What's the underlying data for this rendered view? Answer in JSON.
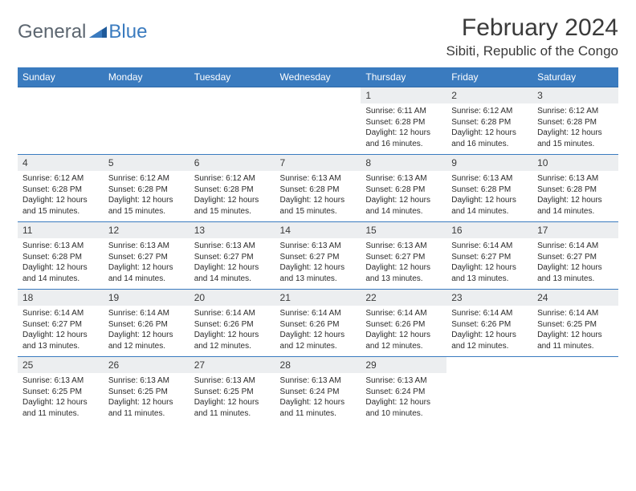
{
  "logo": {
    "general": "General",
    "blue": "Blue"
  },
  "title": "February 2024",
  "location": "Sibiti, Republic of the Congo",
  "colors": {
    "header_bg": "#3a7bbf",
    "header_text": "#ffffff",
    "daynum_bg": "#eceef0",
    "border": "#3a7bbf",
    "text": "#2b2b2b",
    "logo_gray": "#5c6670",
    "logo_blue": "#3a7bbf"
  },
  "days": [
    "Sunday",
    "Monday",
    "Tuesday",
    "Wednesday",
    "Thursday",
    "Friday",
    "Saturday"
  ],
  "weeks": [
    [
      null,
      null,
      null,
      null,
      {
        "n": "1",
        "sr": "6:11 AM",
        "ss": "6:28 PM",
        "dl": "12 hours and 16 minutes."
      },
      {
        "n": "2",
        "sr": "6:12 AM",
        "ss": "6:28 PM",
        "dl": "12 hours and 16 minutes."
      },
      {
        "n": "3",
        "sr": "6:12 AM",
        "ss": "6:28 PM",
        "dl": "12 hours and 15 minutes."
      }
    ],
    [
      {
        "n": "4",
        "sr": "6:12 AM",
        "ss": "6:28 PM",
        "dl": "12 hours and 15 minutes."
      },
      {
        "n": "5",
        "sr": "6:12 AM",
        "ss": "6:28 PM",
        "dl": "12 hours and 15 minutes."
      },
      {
        "n": "6",
        "sr": "6:12 AM",
        "ss": "6:28 PM",
        "dl": "12 hours and 15 minutes."
      },
      {
        "n": "7",
        "sr": "6:13 AM",
        "ss": "6:28 PM",
        "dl": "12 hours and 15 minutes."
      },
      {
        "n": "8",
        "sr": "6:13 AM",
        "ss": "6:28 PM",
        "dl": "12 hours and 14 minutes."
      },
      {
        "n": "9",
        "sr": "6:13 AM",
        "ss": "6:28 PM",
        "dl": "12 hours and 14 minutes."
      },
      {
        "n": "10",
        "sr": "6:13 AM",
        "ss": "6:28 PM",
        "dl": "12 hours and 14 minutes."
      }
    ],
    [
      {
        "n": "11",
        "sr": "6:13 AM",
        "ss": "6:28 PM",
        "dl": "12 hours and 14 minutes."
      },
      {
        "n": "12",
        "sr": "6:13 AM",
        "ss": "6:27 PM",
        "dl": "12 hours and 14 minutes."
      },
      {
        "n": "13",
        "sr": "6:13 AM",
        "ss": "6:27 PM",
        "dl": "12 hours and 14 minutes."
      },
      {
        "n": "14",
        "sr": "6:13 AM",
        "ss": "6:27 PM",
        "dl": "12 hours and 13 minutes."
      },
      {
        "n": "15",
        "sr": "6:13 AM",
        "ss": "6:27 PM",
        "dl": "12 hours and 13 minutes."
      },
      {
        "n": "16",
        "sr": "6:14 AM",
        "ss": "6:27 PM",
        "dl": "12 hours and 13 minutes."
      },
      {
        "n": "17",
        "sr": "6:14 AM",
        "ss": "6:27 PM",
        "dl": "12 hours and 13 minutes."
      }
    ],
    [
      {
        "n": "18",
        "sr": "6:14 AM",
        "ss": "6:27 PM",
        "dl": "12 hours and 13 minutes."
      },
      {
        "n": "19",
        "sr": "6:14 AM",
        "ss": "6:26 PM",
        "dl": "12 hours and 12 minutes."
      },
      {
        "n": "20",
        "sr": "6:14 AM",
        "ss": "6:26 PM",
        "dl": "12 hours and 12 minutes."
      },
      {
        "n": "21",
        "sr": "6:14 AM",
        "ss": "6:26 PM",
        "dl": "12 hours and 12 minutes."
      },
      {
        "n": "22",
        "sr": "6:14 AM",
        "ss": "6:26 PM",
        "dl": "12 hours and 12 minutes."
      },
      {
        "n": "23",
        "sr": "6:14 AM",
        "ss": "6:26 PM",
        "dl": "12 hours and 12 minutes."
      },
      {
        "n": "24",
        "sr": "6:14 AM",
        "ss": "6:25 PM",
        "dl": "12 hours and 11 minutes."
      }
    ],
    [
      {
        "n": "25",
        "sr": "6:13 AM",
        "ss": "6:25 PM",
        "dl": "12 hours and 11 minutes."
      },
      {
        "n": "26",
        "sr": "6:13 AM",
        "ss": "6:25 PM",
        "dl": "12 hours and 11 minutes."
      },
      {
        "n": "27",
        "sr": "6:13 AM",
        "ss": "6:25 PM",
        "dl": "12 hours and 11 minutes."
      },
      {
        "n": "28",
        "sr": "6:13 AM",
        "ss": "6:24 PM",
        "dl": "12 hours and 11 minutes."
      },
      {
        "n": "29",
        "sr": "6:13 AM",
        "ss": "6:24 PM",
        "dl": "12 hours and 10 minutes."
      },
      null,
      null
    ]
  ],
  "labels": {
    "sunrise": "Sunrise: ",
    "sunset": "Sunset: ",
    "daylight": "Daylight: "
  }
}
